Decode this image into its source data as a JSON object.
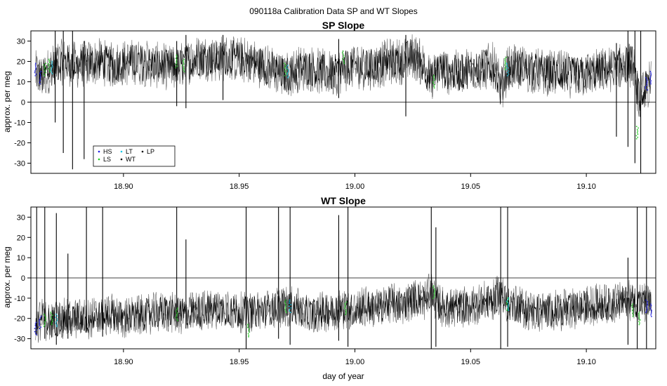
{
  "title": "090118a   Calibration Data SP and WT Slopes",
  "colors": {
    "WT": "#000000",
    "HS": "#1e1ee6",
    "LS": "#22cc22",
    "LT": "#19c8e6",
    "LP": "#000000",
    "trace_grey": "#666666",
    "frame": "#000000"
  },
  "chart_data": [
    {
      "type": "line",
      "title": "SP Slope",
      "xlabel": "",
      "ylabel": "approx. per meg",
      "xlim": [
        18.86,
        19.13
      ],
      "ylim": [
        -35,
        35
      ],
      "x_ticks": [
        18.9,
        18.95,
        19.0,
        19.05,
        19.1
      ],
      "x_tick_labels": [
        "18.90",
        "18.95",
        "19.00",
        "19.05",
        "19.10"
      ],
      "y_ticks": [
        -30,
        -20,
        -10,
        0,
        10,
        20,
        30
      ],
      "y_tick_labels": [
        "-30",
        "-20",
        "-10",
        "0",
        "10",
        "20",
        "30"
      ],
      "hline": 0,
      "grid": false,
      "legend": {
        "placement": "bottom-left",
        "entries": [
          {
            "name": "HS",
            "color": "#1e1ee6"
          },
          {
            "name": "LT",
            "color": "#19c8e6"
          },
          {
            "name": "LP",
            "color": "#000000"
          },
          {
            "name": "LS",
            "color": "#22cc22"
          },
          {
            "name": "WT",
            "color": "#000000"
          }
        ]
      },
      "series": [
        {
          "name": "WT",
          "x": [
            18.862,
            18.865,
            18.868,
            18.871,
            18.874,
            18.877,
            18.88,
            18.885,
            18.89,
            18.895,
            18.9,
            18.905,
            18.91,
            18.915,
            18.92,
            18.925,
            18.93,
            18.935,
            18.94,
            18.945,
            18.95,
            18.955,
            18.96,
            18.965,
            18.97,
            18.975,
            18.98,
            18.985,
            18.99,
            18.995,
            19.0,
            19.005,
            19.01,
            19.015,
            19.02,
            19.025,
            19.03,
            19.033,
            19.036,
            19.04,
            19.045,
            19.05,
            19.055,
            19.06,
            19.063,
            19.066,
            19.07,
            19.075,
            19.08,
            19.085,
            19.09,
            19.095,
            19.1,
            19.105,
            19.11,
            19.115,
            19.12,
            19.123,
            19.126,
            19.128
          ],
          "y": [
            14,
            12,
            16,
            18,
            20,
            19,
            18,
            19,
            20,
            18,
            19,
            20,
            19,
            18,
            17,
            18,
            21,
            22,
            21,
            22,
            21,
            20,
            18,
            16,
            13,
            16,
            17,
            15,
            14,
            16,
            18,
            17,
            18,
            20,
            20,
            23,
            18,
            10,
            17,
            15,
            14,
            16,
            17,
            18,
            6,
            16,
            17,
            16,
            15,
            14,
            14,
            13,
            14,
            15,
            16,
            18,
            19,
            0,
            7,
            10
          ],
          "noise": 9,
          "spikes": [
            {
              "x": 18.8705,
              "low": -10,
              "high": 35
            },
            {
              "x": 18.874,
              "low": -25,
              "high": 35
            },
            {
              "x": 18.878,
              "low": -33,
              "high": 35
            },
            {
              "x": 18.883,
              "low": -28,
              "high": 30
            },
            {
              "x": 18.923,
              "low": -2,
              "high": 30
            },
            {
              "x": 18.927,
              "low": -3,
              "high": 33
            },
            {
              "x": 18.943,
              "low": 1,
              "high": 33
            },
            {
              "x": 18.993,
              "low": 2,
              "high": 31
            },
            {
              "x": 19.022,
              "low": -7,
              "high": 33
            },
            {
              "x": 19.113,
              "low": -17,
              "high": 29
            },
            {
              "x": 19.118,
              "low": -22,
              "high": 35
            },
            {
              "x": 19.121,
              "low": -30,
              "high": 35
            },
            {
              "x": 19.1235,
              "low": -35,
              "high": 35
            }
          ]
        },
        {
          "name": "HS",
          "x": [
            18.862,
            18.864,
            19.126,
            19.128
          ],
          "y": [
            16,
            12,
            9,
            12
          ]
        },
        {
          "name": "LS",
          "x": [
            18.866,
            18.868,
            18.923,
            18.926,
            18.97,
            18.995,
            19.034,
            19.065,
            19.122
          ],
          "y": [
            16,
            18,
            20,
            18,
            16,
            22,
            10,
            19,
            -15
          ]
        },
        {
          "name": "LT",
          "x": [
            18.869,
            18.971,
            19.066
          ],
          "y": [
            17,
            15,
            16
          ]
        }
      ]
    },
    {
      "type": "line",
      "title": "WT Slope",
      "xlabel": "day of year",
      "ylabel": "approx. per meg",
      "xlim": [
        18.86,
        19.13
      ],
      "ylim": [
        -35,
        35
      ],
      "x_ticks": [
        18.9,
        18.95,
        19.0,
        19.05,
        19.1
      ],
      "x_tick_labels": [
        "18.90",
        "18.95",
        "19.00",
        "19.05",
        "19.10"
      ],
      "y_ticks": [
        -30,
        -20,
        -10,
        0,
        10,
        20,
        30
      ],
      "y_tick_labels": [
        "-30",
        "-20",
        "-10",
        "0",
        "10",
        "20",
        "30"
      ],
      "hline": 0,
      "grid": false,
      "series": [
        {
          "name": "WT",
          "x": [
            18.862,
            18.865,
            18.868,
            18.871,
            18.874,
            18.877,
            18.88,
            18.885,
            18.89,
            18.895,
            18.9,
            18.905,
            18.91,
            18.915,
            18.92,
            18.925,
            18.93,
            18.935,
            18.94,
            18.945,
            18.95,
            18.955,
            18.96,
            18.965,
            18.97,
            18.975,
            18.98,
            18.985,
            18.99,
            18.995,
            19.0,
            19.005,
            19.01,
            19.015,
            19.02,
            19.025,
            19.03,
            19.033,
            19.036,
            19.04,
            19.045,
            19.05,
            19.055,
            19.06,
            19.063,
            19.066,
            19.07,
            19.075,
            19.08,
            19.085,
            19.09,
            19.095,
            19.1,
            19.105,
            19.11,
            19.115,
            19.12,
            19.123,
            19.126,
            19.128
          ],
          "y": [
            -23,
            -20,
            -22,
            -21,
            -20,
            -21,
            -20,
            -20,
            -19,
            -18,
            -20,
            -19,
            -18,
            -17,
            -17,
            -18,
            -17,
            -16,
            -15,
            -16,
            -17,
            -17,
            -16,
            -15,
            -14,
            -15,
            -18,
            -17,
            -16,
            -15,
            -16,
            -14,
            -15,
            -12,
            -14,
            -10,
            -11,
            -7,
            -13,
            -15,
            -15,
            -14,
            -12,
            -11,
            -7,
            -13,
            -14,
            -16,
            -17,
            -16,
            -16,
            -15,
            -14,
            -13,
            -13,
            -12,
            -11,
            -12,
            -13,
            -14
          ],
          "noise": 8,
          "spikes": [
            {
              "x": 18.8625,
              "low": -28,
              "high": 35
            },
            {
              "x": 18.866,
              "low": -30,
              "high": 35
            },
            {
              "x": 18.871,
              "low": -33,
              "high": 32
            },
            {
              "x": 18.876,
              "low": -30,
              "high": 12
            },
            {
              "x": 18.884,
              "low": -27,
              "high": 35
            },
            {
              "x": 18.891,
              "low": -29,
              "high": 35
            },
            {
              "x": 18.923,
              "low": -20,
              "high": 35
            },
            {
              "x": 18.927,
              "low": -25,
              "high": 19
            },
            {
              "x": 18.953,
              "low": -35,
              "high": 35
            },
            {
              "x": 18.967,
              "low": -30,
              "high": 35
            },
            {
              "x": 18.972,
              "low": -33,
              "high": 35
            },
            {
              "x": 18.993,
              "low": -31,
              "high": 31
            },
            {
              "x": 18.997,
              "low": -34,
              "high": 35
            },
            {
              "x": 19.033,
              "low": -35,
              "high": 35
            },
            {
              "x": 19.035,
              "low": -34,
              "high": 25
            },
            {
              "x": 19.063,
              "low": -35,
              "high": 35
            },
            {
              "x": 19.066,
              "low": -34,
              "high": 35
            },
            {
              "x": 19.118,
              "low": -33,
              "high": 10
            },
            {
              "x": 19.122,
              "low": -35,
              "high": 35
            },
            {
              "x": 19.126,
              "low": -35,
              "high": 35
            }
          ]
        },
        {
          "name": "HS",
          "x": [
            18.862,
            18.864,
            19.126,
            19.128
          ],
          "y": [
            -25,
            -22,
            -14,
            -16
          ]
        },
        {
          "name": "LS",
          "x": [
            18.866,
            18.869,
            18.923,
            18.954,
            18.97,
            18.996,
            19.034,
            19.066,
            19.12,
            19.123
          ],
          "y": [
            -21,
            -20,
            -18,
            -26,
            -14,
            -15,
            -7,
            -13,
            -16,
            -20
          ]
        },
        {
          "name": "LT",
          "x": [
            18.871,
            18.972,
            19.066
          ],
          "y": [
            -21,
            -14,
            -13
          ]
        }
      ]
    }
  ]
}
